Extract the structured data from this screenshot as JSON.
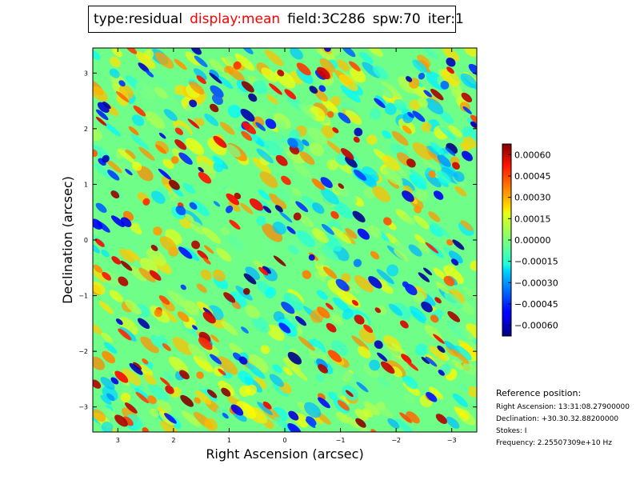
{
  "title_parts": [
    {
      "text": "type:residual",
      "color": "#000000"
    },
    {
      "text": "display:mean",
      "color": "#ff0000"
    },
    {
      "text": "field:3C286",
      "color": "#000000"
    },
    {
      "text": "spw:70",
      "color": "#000000"
    },
    {
      "text": "iter:1",
      "color": "#000000"
    }
  ],
  "reference": {
    "heading": "Reference position:",
    "ra": "Right Ascension: 13:31:08.27900000",
    "dec": "Declination: +30.30.32.88200000",
    "stokes": "Stokes: I",
    "frequency": "Frequency: 2.25507309e+10 Hz"
  },
  "chart_data": {
    "type": "heatmap",
    "xlabel": "Right Ascension (arcsec)",
    "ylabel": "Declination (arcsec)",
    "x_ticks": [
      "3",
      "2",
      "1",
      "0",
      "−1",
      "−2",
      "−3"
    ],
    "x_tick_values": [
      3,
      2,
      1,
      0,
      -1,
      -2,
      -3
    ],
    "y_ticks": [
      "3",
      "2",
      "1",
      "0",
      "−1",
      "−2",
      "−3"
    ],
    "y_tick_values": [
      3,
      2,
      1,
      0,
      -1,
      -2,
      -3
    ],
    "xlim": [
      3.45,
      -3.45
    ],
    "ylim": [
      -3.45,
      3.45
    ],
    "colormap": "jet",
    "colorbar": {
      "vmin": -0.000675,
      "vmax": 0.000675,
      "ticks": [
        "0.00060",
        "0.00045",
        "0.00030",
        "0.00015",
        "0.00000",
        "−0.00015",
        "−0.00030",
        "−0.00045",
        "−0.00060"
      ],
      "tick_values": [
        0.0006,
        0.00045,
        0.0003,
        0.00015,
        0.0,
        -0.00015,
        -0.0003,
        -0.00045,
        -0.0006
      ]
    },
    "grid": false
  }
}
